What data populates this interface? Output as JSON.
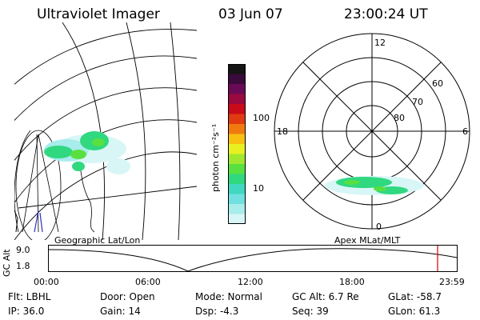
{
  "header": {
    "instrument": "Ultraviolet Imager",
    "date": "03 Jun 07",
    "time": "23:00:24 UT"
  },
  "colorbar": {
    "unit_label": "photon cm⁻²s⁻¹",
    "ticks": [
      "100",
      "10"
    ],
    "colors": [
      "#151515",
      "#3a0a3a",
      "#6a0a55",
      "#9a0a40",
      "#c80a1a",
      "#e03a10",
      "#f07a10",
      "#f8c010",
      "#e8f020",
      "#a0e830",
      "#58e040",
      "#30d880",
      "#40d8c0",
      "#70e0e0",
      "#a8ecec",
      "#d8f6f6"
    ]
  },
  "polar_plot": {
    "clock_labels": [
      "12",
      "18",
      "6",
      "0"
    ],
    "lat_labels": [
      "60",
      "70",
      "80"
    ]
  },
  "timeline": {
    "axis_title": "GC Alt",
    "left_label": "Geographic Lat/Lon",
    "right_label": "Apex  MLat/MLT",
    "y_ticks": [
      "9.0",
      "1.8"
    ],
    "x_ticks": [
      "00:00",
      "06:00",
      "12:00",
      "18:00",
      "23:59"
    ],
    "current_marker_color": "#dd0000"
  },
  "footer": {
    "flt": "Flt: LBHL",
    "door": "Door: Open",
    "mode": "Mode: Normal",
    "gc_alt": "GC Alt: 6.7 Re",
    "glat": "GLat: -58.7",
    "ip": "IP: 36.0",
    "gain": "Gain: 14",
    "dsp": "Dsp:    -4.3",
    "seq": "Seq: 39",
    "glon": "GLon:  61.3"
  }
}
